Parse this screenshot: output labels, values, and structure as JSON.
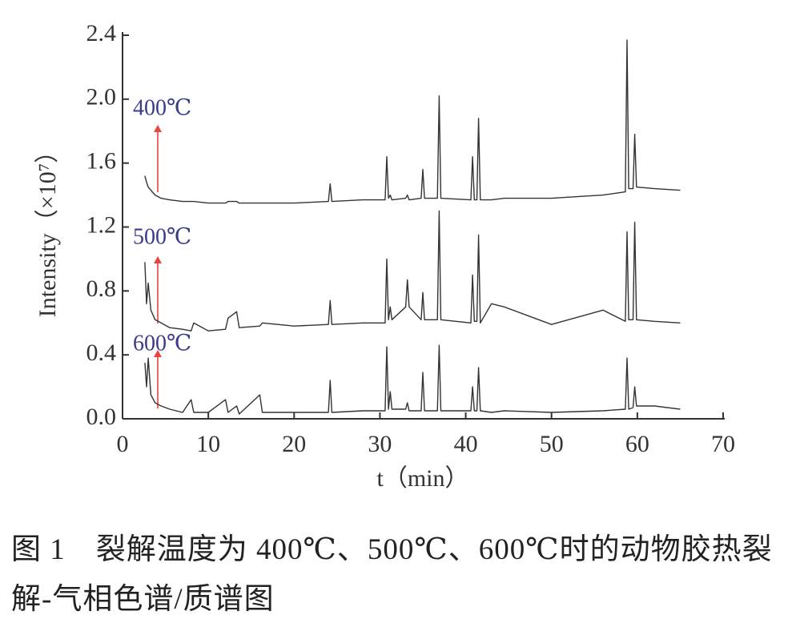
{
  "chart_data": {
    "type": "line",
    "ylabel": "Intensity（×10⁷）",
    "xlabel": "t（min）",
    "xlim": [
      0,
      70
    ],
    "ylim": [
      0,
      2.4
    ],
    "xticks": [
      0,
      10,
      20,
      30,
      40,
      50,
      60,
      70
    ],
    "yticks": [
      {
        "value": 0.0,
        "label": "0.0"
      },
      {
        "value": 0.4,
        "label": "0.4"
      },
      {
        "value": 0.8,
        "label": "0.8"
      },
      {
        "value": 1.2,
        "label": "1.2"
      },
      {
        "value": 1.6,
        "label": "1.6"
      },
      {
        "value": 2.0,
        "label": "2.0"
      },
      {
        "value": 2.4,
        "label": "2.4"
      }
    ],
    "label_color": "#3b3b8c",
    "arrow_color": "#e8453c",
    "x": [
      2.6,
      2.8,
      3.0,
      3.3,
      3.8,
      4.5,
      5.5,
      7,
      8,
      8.3,
      10,
      12,
      12.3,
      13.3,
      13.6,
      16,
      16.3,
      20,
      24,
      24.2,
      24.4,
      28,
      30.6,
      30.8,
      31.0,
      31.2,
      31.4,
      33.0,
      33.2,
      33.4,
      34.8,
      35.0,
      35.2,
      36.7,
      36.9,
      37.1,
      40.6,
      40.8,
      41.0,
      41.3,
      41.5,
      41.7,
      43,
      44.5,
      50,
      56,
      58.6,
      58.8,
      59.0,
      59.5,
      59.7,
      59.9,
      62,
      65
    ],
    "series": [
      {
        "name": "400℃",
        "color": "#333333",
        "values": [
          1.52,
          1.48,
          1.45,
          1.43,
          1.4,
          1.38,
          1.37,
          1.36,
          1.36,
          1.36,
          1.35,
          1.35,
          1.36,
          1.36,
          1.35,
          1.35,
          1.35,
          1.35,
          1.36,
          1.47,
          1.36,
          1.37,
          1.37,
          1.64,
          1.38,
          1.4,
          1.37,
          1.38,
          1.4,
          1.37,
          1.38,
          1.56,
          1.38,
          1.38,
          2.02,
          1.38,
          1.37,
          1.64,
          1.37,
          1.37,
          1.88,
          1.37,
          1.37,
          1.38,
          1.38,
          1.4,
          1.42,
          2.37,
          1.44,
          1.44,
          1.78,
          1.45,
          1.44,
          1.43
        ]
      },
      {
        "name": "500℃",
        "color": "#333333",
        "values": [
          0.98,
          0.72,
          0.85,
          0.68,
          0.62,
          0.6,
          0.57,
          0.56,
          0.55,
          0.6,
          0.55,
          0.56,
          0.63,
          0.67,
          0.57,
          0.58,
          0.6,
          0.58,
          0.59,
          0.74,
          0.59,
          0.6,
          0.6,
          1.0,
          0.62,
          0.7,
          0.62,
          0.7,
          0.87,
          0.7,
          0.62,
          0.79,
          0.62,
          0.62,
          1.3,
          0.62,
          0.6,
          0.9,
          0.61,
          0.61,
          1.15,
          0.6,
          0.72,
          0.7,
          0.59,
          0.68,
          0.61,
          1.17,
          0.62,
          0.62,
          1.23,
          0.62,
          0.61,
          0.6
        ]
      },
      {
        "name": "600℃",
        "color": "#333333",
        "values": [
          0.35,
          0.2,
          0.38,
          0.15,
          0.1,
          0.08,
          0.06,
          0.04,
          0.12,
          0.04,
          0.04,
          0.12,
          0.04,
          0.08,
          0.03,
          0.15,
          0.04,
          0.04,
          0.04,
          0.24,
          0.04,
          0.05,
          0.05,
          0.45,
          0.06,
          0.17,
          0.06,
          0.06,
          0.1,
          0.05,
          0.05,
          0.29,
          0.05,
          0.05,
          0.46,
          0.05,
          0.05,
          0.2,
          0.05,
          0.05,
          0.32,
          0.05,
          0.04,
          0.05,
          0.04,
          0.05,
          0.06,
          0.38,
          0.06,
          0.07,
          0.2,
          0.08,
          0.08,
          0.06
        ]
      }
    ]
  },
  "caption": "图 1　裂解温度为 400℃、500℃、600℃时的动物胶热裂解-气相色谱/质谱图"
}
